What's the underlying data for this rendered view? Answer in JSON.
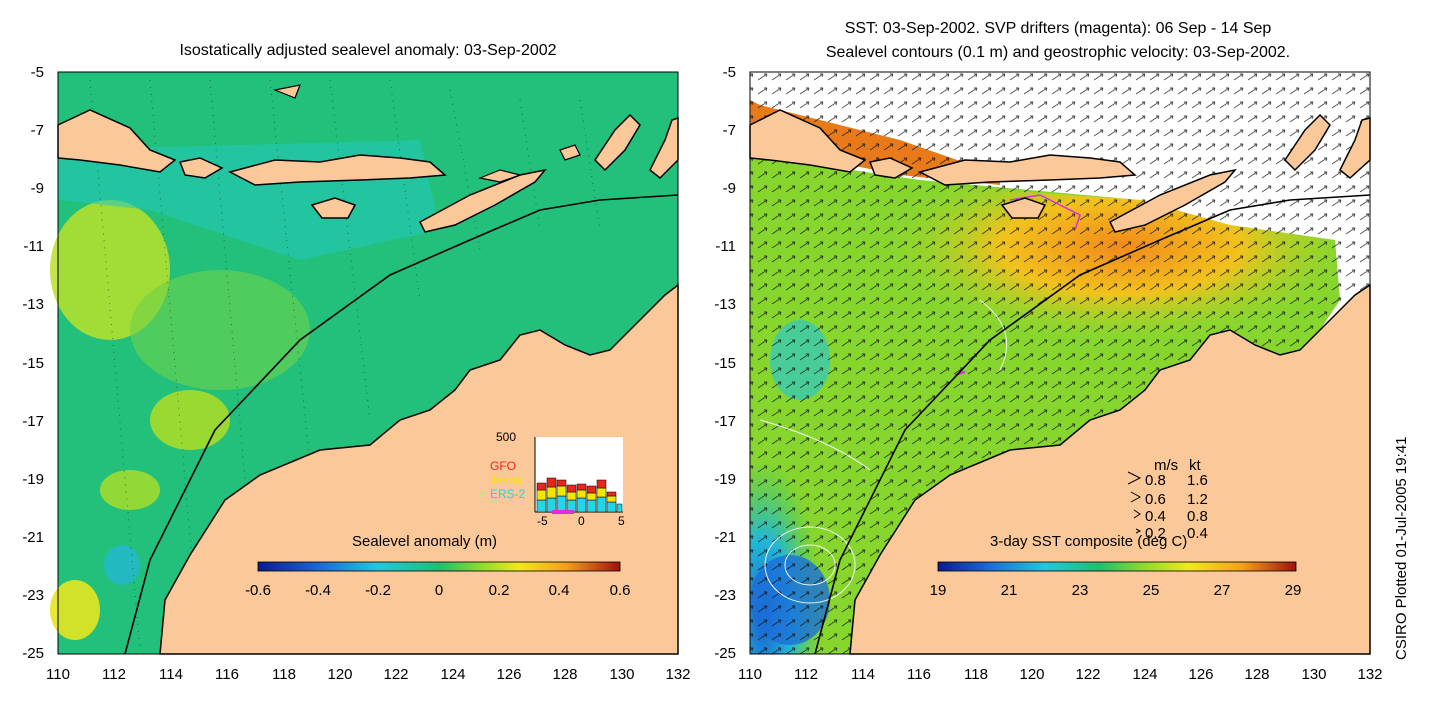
{
  "left_panel": {
    "title": "Isostatically adjusted sealevel anomaly: 03-Sep-2002",
    "colorbar": {
      "label": "Sealevel anomaly (m)",
      "ticks": [
        "-0.6",
        "-0.4",
        "-0.2",
        "0",
        "0.2",
        "0.4",
        "0.6"
      ]
    },
    "inset": {
      "ymax_label": "500",
      "legend": [
        {
          "name": "GFO",
          "color": "#e8261c"
        },
        {
          "name": "Jason",
          "color": "#f2e600"
        },
        {
          "name": "ERS-2",
          "color": "#22d6e8"
        }
      ],
      "x_ticks": [
        "-5",
        "0",
        "5"
      ]
    }
  },
  "right_panel": {
    "title_line1": "SST: 03-Sep-2002. SVP drifters (magenta): 06 Sep - 14 Sep",
    "title_line2": "Sealevel contours (0.1 m) and geostrophic velocity: 03-Sep-2002.",
    "colorbar": {
      "label": "3-day SST composite (deg C)",
      "ticks": [
        "19",
        "21",
        "23",
        "25",
        "27",
        "29"
      ]
    },
    "velocity_key": {
      "header_ms": "m/s",
      "header_kt": "kt",
      "rows": [
        {
          "ms": "0.8",
          "kt": "1.6"
        },
        {
          "ms": "0.6",
          "kt": "1.2"
        },
        {
          "ms": "0.4",
          "kt": "0.8"
        },
        {
          "ms": "0.2",
          "kt": "0.4"
        }
      ]
    }
  },
  "axes": {
    "lat_ticks": [
      "-5",
      "-7",
      "-9",
      "-11",
      "-13",
      "-15",
      "-17",
      "-19",
      "-21",
      "-23",
      "-25"
    ],
    "lon_ticks": [
      "110",
      "112",
      "114",
      "116",
      "118",
      "120",
      "122",
      "124",
      "126",
      "128",
      "130",
      "132"
    ]
  },
  "credit": "CSIRO Plotted 01-Jul-2005 19:41",
  "colors": {
    "land": "#fbc899",
    "ocean_base": "#22c07a",
    "coast": "#000000"
  }
}
